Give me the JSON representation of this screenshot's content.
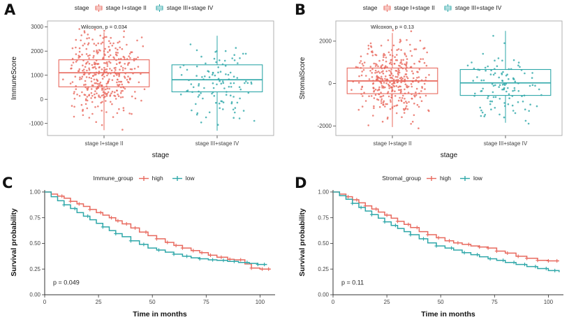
{
  "panels": {
    "a": {
      "label": "A"
    },
    "b": {
      "label": "B"
    },
    "c": {
      "label": "C"
    },
    "d": {
      "label": "D"
    }
  },
  "colors": {
    "group1": "#E8695E",
    "group2": "#2EA7A9"
  },
  "chart_data": [
    {
      "id": "A",
      "type": "boxplot-jitter",
      "legend_title": "stage",
      "legend_glyph": "box",
      "legend_items": [
        {
          "label": "stage I+stage II",
          "color": "#E8695E"
        },
        {
          "label": "stage III+stage IV",
          "color": "#2EA7A9"
        }
      ],
      "annotation": "Wilcoxon, p = 0.034",
      "xlabel": "stage",
      "ylabel": "ImmuneScore",
      "ylim": [
        -1500,
        3250
      ],
      "yticks": [
        "-1000",
        "0",
        "1000",
        "2000",
        "3000"
      ],
      "groups": [
        {
          "label": "stage I+stage II",
          "color": "#E8695E",
          "n": 380,
          "median": 1100,
          "q1": 520,
          "q3": 1640,
          "whisker_low": -1280,
          "whisker_high": 2780,
          "points_min": -1320,
          "points_max": 2950
        },
        {
          "label": "stage III+stage IV",
          "color": "#2EA7A9",
          "n": 115,
          "median": 810,
          "q1": 310,
          "q3": 1430,
          "whisker_low": -1300,
          "whisker_high": 2640,
          "points_min": -1330,
          "points_max": 2700
        }
      ]
    },
    {
      "id": "B",
      "type": "boxplot-jitter",
      "legend_title": "stage",
      "legend_glyph": "box",
      "legend_items": [
        {
          "label": "stage I+stage II",
          "color": "#E8695E"
        },
        {
          "label": "stage III+stage IV",
          "color": "#2EA7A9"
        }
      ],
      "annotation": "Wilcoxon, p = 0.13",
      "xlabel": "stage",
      "ylabel": "StromalScore",
      "ylim": [
        -2450,
        2950
      ],
      "yticks": [
        "-2000",
        "0",
        "2000"
      ],
      "groups": [
        {
          "label": "stage I+stage II",
          "color": "#E8695E",
          "n": 380,
          "median": 120,
          "q1": -480,
          "q3": 730,
          "whisker_low": -2050,
          "whisker_high": 2380,
          "points_min": -2150,
          "points_max": 2600
        },
        {
          "label": "stage III+stage IV",
          "color": "#2EA7A9",
          "n": 115,
          "median": 30,
          "q1": -560,
          "q3": 660,
          "whisker_low": -1850,
          "whisker_high": 2480,
          "points_min": -1900,
          "points_max": 2520
        }
      ]
    },
    {
      "id": "C",
      "type": "km",
      "legend_title": "Immune_group",
      "legend_glyph": "line",
      "legend_items": [
        {
          "label": "high",
          "color": "#E8695E"
        },
        {
          "label": "low",
          "color": "#2EA7A9"
        }
      ],
      "annotation": "p = 0.049",
      "xlabel": "Time in months",
      "ylabel": "Survival probability",
      "xlim": [
        0,
        107
      ],
      "xticks": [
        "0",
        "25",
        "50",
        "75",
        "100"
      ],
      "yticks": [
        "0.00",
        "0.25",
        "0.50",
        "0.75",
        "1.00"
      ],
      "series": [
        {
          "name": "high",
          "color": "#E8695E",
          "steps": [
            [
              0,
              1.0
            ],
            [
              3,
              0.98
            ],
            [
              6,
              0.96
            ],
            [
              9,
              0.94
            ],
            [
              12,
              0.91
            ],
            [
              15,
              0.885
            ],
            [
              18,
              0.86
            ],
            [
              21,
              0.83
            ],
            [
              24,
              0.8
            ],
            [
              27,
              0.775
            ],
            [
              30,
              0.75
            ],
            [
              33,
              0.72
            ],
            [
              36,
              0.69
            ],
            [
              40,
              0.65
            ],
            [
              44,
              0.61
            ],
            [
              48,
              0.575
            ],
            [
              52,
              0.545
            ],
            [
              56,
              0.51
            ],
            [
              60,
              0.48
            ],
            [
              64,
              0.455
            ],
            [
              68,
              0.43
            ],
            [
              72,
              0.41
            ],
            [
              76,
              0.385
            ],
            [
              80,
              0.365
            ],
            [
              85,
              0.345
            ],
            [
              88,
              0.34
            ],
            [
              93,
              0.3
            ],
            [
              96,
              0.26
            ],
            [
              100,
              0.25
            ],
            [
              105,
              0.25
            ]
          ],
          "censors": [
            8,
            12,
            16,
            21,
            26,
            31,
            34,
            38,
            42,
            47,
            52,
            57,
            61,
            64,
            69,
            73,
            77,
            82,
            86,
            91,
            96,
            101,
            104
          ]
        },
        {
          "name": "low",
          "color": "#2EA7A9",
          "steps": [
            [
              0,
              1.0
            ],
            [
              3,
              0.955
            ],
            [
              6,
              0.915
            ],
            [
              9,
              0.875
            ],
            [
              12,
              0.84
            ],
            [
              15,
              0.8
            ],
            [
              18,
              0.765
            ],
            [
              21,
              0.73
            ],
            [
              24,
              0.695
            ],
            [
              27,
              0.66
            ],
            [
              30,
              0.625
            ],
            [
              33,
              0.595
            ],
            [
              36,
              0.565
            ],
            [
              40,
              0.525
            ],
            [
              44,
              0.49
            ],
            [
              48,
              0.455
            ],
            [
              52,
              0.435
            ],
            [
              56,
              0.415
            ],
            [
              60,
              0.395
            ],
            [
              64,
              0.375
            ],
            [
              68,
              0.36
            ],
            [
              72,
              0.35
            ],
            [
              76,
              0.34
            ],
            [
              80,
              0.335
            ],
            [
              85,
              0.325
            ],
            [
              90,
              0.315
            ],
            [
              95,
              0.305
            ],
            [
              99,
              0.295
            ],
            [
              103,
              0.29
            ]
          ],
          "censors": [
            9,
            14,
            20,
            27,
            33,
            40,
            46,
            53,
            60,
            66,
            72,
            78,
            83,
            88,
            94,
            99,
            102
          ]
        }
      ]
    },
    {
      "id": "D",
      "type": "km",
      "legend_title": "Stromal_group",
      "legend_glyph": "line",
      "legend_items": [
        {
          "label": "high",
          "color": "#E8695E"
        },
        {
          "label": "low",
          "color": "#2EA7A9"
        }
      ],
      "annotation": "p = 0.11",
      "xlabel": "Time in months",
      "ylabel": "Survival probability",
      "xlim": [
        0,
        107
      ],
      "xticks": [
        "0",
        "25",
        "50",
        "75",
        "100"
      ],
      "yticks": [
        "0.00",
        "0.25",
        "0.50",
        "0.75",
        "1.00"
      ],
      "series": [
        {
          "name": "high",
          "color": "#E8695E",
          "steps": [
            [
              0,
              1.0
            ],
            [
              3,
              0.98
            ],
            [
              6,
              0.955
            ],
            [
              9,
              0.925
            ],
            [
              12,
              0.895
            ],
            [
              15,
              0.865
            ],
            [
              18,
              0.835
            ],
            [
              21,
              0.805
            ],
            [
              24,
              0.775
            ],
            [
              27,
              0.745
            ],
            [
              30,
              0.715
            ],
            [
              33,
              0.685
            ],
            [
              36,
              0.655
            ],
            [
              40,
              0.615
            ],
            [
              44,
              0.585
            ],
            [
              48,
              0.555
            ],
            [
              52,
              0.525
            ],
            [
              56,
              0.505
            ],
            [
              60,
              0.49
            ],
            [
              64,
              0.475
            ],
            [
              68,
              0.465
            ],
            [
              72,
              0.455
            ],
            [
              76,
              0.425
            ],
            [
              80,
              0.405
            ],
            [
              85,
              0.375
            ],
            [
              90,
              0.355
            ],
            [
              95,
              0.335
            ],
            [
              100,
              0.33
            ],
            [
              105,
              0.33
            ]
          ],
          "censors": [
            7,
            11,
            15,
            20,
            25,
            30,
            35,
            39,
            44,
            49,
            54,
            58,
            63,
            68,
            72,
            76,
            81,
            86,
            90,
            95,
            100,
            104
          ]
        },
        {
          "name": "low",
          "color": "#2EA7A9",
          "steps": [
            [
              0,
              1.0
            ],
            [
              3,
              0.965
            ],
            [
              6,
              0.93
            ],
            [
              9,
              0.89
            ],
            [
              12,
              0.85
            ],
            [
              15,
              0.815
            ],
            [
              18,
              0.78
            ],
            [
              21,
              0.745
            ],
            [
              24,
              0.71
            ],
            [
              27,
              0.675
            ],
            [
              30,
              0.645
            ],
            [
              33,
              0.615
            ],
            [
              36,
              0.585
            ],
            [
              40,
              0.545
            ],
            [
              44,
              0.505
            ],
            [
              48,
              0.475
            ],
            [
              52,
              0.455
            ],
            [
              56,
              0.435
            ],
            [
              60,
              0.41
            ],
            [
              64,
              0.39
            ],
            [
              68,
              0.37
            ],
            [
              72,
              0.35
            ],
            [
              76,
              0.335
            ],
            [
              80,
              0.315
            ],
            [
              85,
              0.295
            ],
            [
              90,
              0.275
            ],
            [
              95,
              0.255
            ],
            [
              100,
              0.235
            ],
            [
              105,
              0.22
            ]
          ],
          "censors": [
            9,
            13,
            18,
            24,
            29,
            36,
            42,
            48,
            55,
            61,
            67,
            73,
            79,
            84,
            89,
            94,
            99,
            103
          ]
        }
      ]
    }
  ]
}
